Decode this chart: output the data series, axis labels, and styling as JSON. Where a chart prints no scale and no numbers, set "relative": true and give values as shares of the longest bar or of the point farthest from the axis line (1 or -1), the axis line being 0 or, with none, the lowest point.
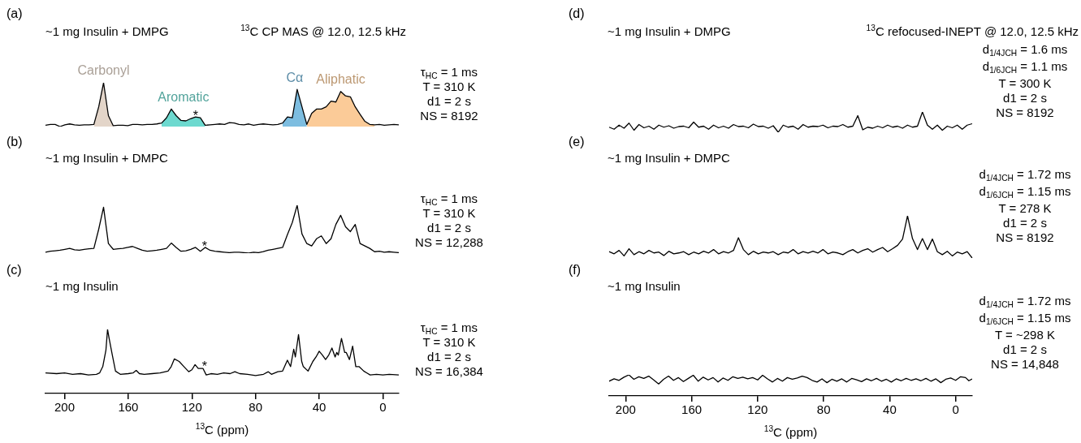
{
  "chart_data": [
    {
      "type": "line",
      "title": "~1 mg Insulin + DMPG",
      "subtitle": "$^{13}$C CP MAS @ 12.0, 12.5 kHz",
      "relative": true,
      "tick_labels": false,
      "categories": [
        null,
        null,
        null,
        null,
        null,
        null,
        null,
        null,
        null,
        null,
        null,
        null,
        null,
        null,
        null,
        null,
        null,
        null,
        null,
        null,
        null,
        null,
        null,
        null,
        null,
        null,
        null,
        null,
        null,
        null,
        null,
        null,
        null,
        null,
        null,
        null,
        null,
        null,
        null,
        null,
        null,
        null,
        null,
        null,
        null,
        null,
        null,
        null,
        null,
        null,
        null,
        null,
        null,
        null,
        null,
        null,
        null,
        null,
        null,
        null,
        null,
        null,
        null,
        null,
        null,
        null,
        null,
        null,
        null,
        null,
        null,
        null,
        null,
        null
      ],
      "series": [
        {
          "color": "#000000",
          "values": [
            0.03,
            0.05,
            0.05,
            0,
            0.04,
            0.06,
            0.04,
            0.03,
            0.04,
            0.04,
            0.05,
            0.45,
            1,
            0.25,
            0.02,
            0.03,
            0.03,
            0.02,
            0.05,
            0.05,
            0.04,
            0.05,
            0.05,
            0.06,
            0.08,
            0.2,
            0.4,
            0.25,
            0.14,
            0.13,
            0.18,
            0.22,
            0.2,
            0.03,
            0.04,
            0.05,
            0.06,
            0.05,
            0.09,
            0.08,
            0.05,
            0.04,
            0.06,
            0.03,
            0.05,
            0.06,
            0.05,
            0.04,
            0.05,
            0.08,
            0.22,
            0.2,
            0.85,
            0.45,
            0.05,
            0.3,
            0.4,
            0.4,
            0.45,
            0.58,
            0.56,
            0.8,
            0.7,
            0.68,
            0.45,
            0.28,
            0.12,
            0.05,
            0.04,
            0.05,
            0.03,
            0.04,
            0.05,
            0.04
          ]
        },
        {
          "type": "area",
          "name": "Carbonyl",
          "color": "#e3d5c9",
          "values": [
            null,
            null,
            null,
            null,
            null,
            null,
            null,
            null,
            null,
            null,
            0.05,
            0.45,
            1,
            0.25,
            0.02,
            null,
            null,
            null,
            null,
            null,
            null,
            null,
            null,
            null,
            null,
            null,
            null,
            null,
            null,
            null,
            null,
            null,
            null,
            null,
            null,
            null,
            null,
            null,
            null,
            null,
            null,
            null,
            null,
            null,
            null,
            null,
            null,
            null,
            null,
            null,
            null,
            null,
            null,
            null,
            null,
            null,
            null,
            null,
            null,
            null,
            null,
            null,
            null,
            null,
            null,
            null,
            null,
            null,
            null,
            null,
            null,
            null,
            null,
            null
          ]
        },
        {
          "type": "area",
          "name": "Aromatic",
          "color": "#6dd9cf",
          "values": [
            null,
            null,
            null,
            null,
            null,
            null,
            null,
            null,
            null,
            null,
            null,
            null,
            null,
            null,
            null,
            null,
            null,
            null,
            null,
            null,
            null,
            null,
            null,
            null,
            0.08,
            0.2,
            0.4,
            0.25,
            0.14,
            0.13,
            0.18,
            0.22,
            0.2,
            0.03,
            null,
            null,
            null,
            null,
            null,
            null,
            null,
            null,
            null,
            null,
            null,
            null,
            null,
            null,
            null,
            null,
            null,
            null,
            null,
            null,
            null,
            null,
            null,
            null,
            null,
            null,
            null,
            null,
            null,
            null,
            null,
            null,
            null,
            null,
            null,
            null,
            null,
            null,
            null,
            null
          ]
        },
        {
          "type": "area",
          "name": "Cα",
          "color": "#7dbde0",
          "values": [
            null,
            null,
            null,
            null,
            null,
            null,
            null,
            null,
            null,
            null,
            null,
            null,
            null,
            null,
            null,
            null,
            null,
            null,
            null,
            null,
            null,
            null,
            null,
            null,
            null,
            null,
            null,
            null,
            null,
            null,
            null,
            null,
            null,
            null,
            null,
            null,
            null,
            null,
            null,
            null,
            null,
            null,
            null,
            null,
            null,
            null,
            null,
            null,
            null,
            0.08,
            0.22,
            0.2,
            0.85,
            0.45,
            0.05,
            null,
            null,
            null,
            null,
            null,
            null,
            null,
            null,
            null,
            null,
            null,
            null,
            null,
            null,
            null,
            null,
            null,
            null,
            null
          ]
        },
        {
          "type": "area",
          "name": "Aliphatic",
          "color": "#fbcb98",
          "values": [
            null,
            null,
            null,
            null,
            null,
            null,
            null,
            null,
            null,
            null,
            null,
            null,
            null,
            null,
            null,
            null,
            null,
            null,
            null,
            null,
            null,
            null,
            null,
            null,
            null,
            null,
            null,
            null,
            null,
            null,
            null,
            null,
            null,
            null,
            null,
            null,
            null,
            null,
            null,
            null,
            null,
            null,
            null,
            null,
            null,
            null,
            null,
            null,
            null,
            null,
            null,
            null,
            null,
            null,
            0.05,
            0.3,
            0.4,
            0.4,
            0.45,
            0.58,
            0.56,
            0.8,
            0.7,
            0.68,
            0.45,
            0.28,
            0.12,
            0.05,
            0.04,
            null,
            null,
            null,
            null,
            null
          ]
        }
      ],
      "annotations": [
        "(a)",
        "τ$_{HC}$ = 1 ms",
        "T = 310 K",
        "d1 = 2 s",
        "NS = 8192",
        {
          "text": "*",
          "y": 0.24
        }
      ]
    },
    {
      "type": "line",
      "title": "~1 mg Insulin + DMPC",
      "relative": true,
      "tick_labels": false,
      "categories": [
        null,
        null,
        null,
        null,
        null,
        null,
        null,
        null,
        null,
        null,
        null,
        null,
        null,
        null,
        null,
        null,
        null,
        null,
        null,
        null,
        null,
        null,
        null,
        null,
        null,
        null,
        null,
        null,
        null,
        null,
        null,
        null,
        null,
        null,
        null,
        null,
        null,
        null,
        null,
        null,
        null,
        null,
        null,
        null,
        null,
        null,
        null,
        null,
        null,
        null,
        null,
        null,
        null,
        null,
        null,
        null,
        null,
        null,
        null,
        null,
        null,
        null,
        null,
        null,
        null,
        null,
        null,
        null,
        null,
        null,
        null,
        null,
        null,
        null
      ],
      "series": [
        {
          "color": "#000000",
          "values": [
            0.02,
            0.04,
            0.05,
            0.06,
            0.08,
            0.1,
            0.07,
            0.06,
            0.08,
            0.09,
            0.1,
            0.5,
            0.96,
            0.2,
            0.08,
            0.09,
            0.1,
            0.12,
            0.14,
            0.1,
            0.06,
            0.04,
            0.05,
            0.06,
            0.08,
            0.1,
            0.21,
            0.12,
            0.04,
            0.05,
            0.08,
            0.12,
            0.04,
            0.12,
            0.06,
            0.04,
            0.03,
            0.02,
            0.01,
            0.02,
            0.02,
            0.01,
            0,
            0.02,
            0.01,
            0.03,
            0.06,
            0.08,
            0.1,
            0.12,
            0.39,
            0.64,
            1,
            0.4,
            0.2,
            0.15,
            0.3,
            0.36,
            0.2,
            0.3,
            0.6,
            0.79,
            0.55,
            0.45,
            0.6,
            0.2,
            0.15,
            0.1,
            0.03,
            0.04,
            0.02,
            0.03,
            0.02,
            0.01
          ]
        }
      ],
      "annotations": [
        "(b)",
        "τ$_{HC}$ = 1 ms",
        "T = 310 K",
        "d1 = 2 s",
        "NS = 12,288",
        {
          "text": "*",
          "y": 0.15
        }
      ]
    },
    {
      "type": "line",
      "title": "~1 mg Insulin",
      "relative": true,
      "tick_labels": "x",
      "xlabel": "$^{13}$C (ppm)",
      "xlim": [
        212,
        -10
      ],
      "xticks": [
        200,
        160,
        120,
        80,
        40,
        0
      ],
      "series": [
        {
          "color": "#000000",
          "x": [
            212,
            205,
            200,
            195,
            190,
            185,
            180,
            178,
            176,
            174,
            173,
            172,
            170,
            168,
            165,
            160,
            157,
            155,
            153,
            150,
            145,
            140,
            135,
            133,
            131,
            128,
            125,
            122,
            120,
            118,
            116,
            113,
            111,
            108,
            104,
            100,
            96,
            93,
            90,
            85,
            80,
            75,
            72,
            70,
            66,
            63,
            60,
            58,
            56,
            55,
            53,
            51,
            50,
            47,
            44,
            42,
            40,
            38,
            36,
            34,
            32,
            30,
            29,
            28,
            26,
            24,
            23,
            21,
            19,
            17,
            15,
            12,
            10,
            8,
            4,
            0,
            -4,
            -10
          ],
          "values": [
            0.32,
            0.31,
            0.32,
            0.3,
            0.31,
            0.29,
            0.3,
            0.32,
            0.42,
            0.68,
            1,
            0.86,
            0.6,
            0.35,
            0.3,
            0.31,
            0.32,
            0.36,
            0.31,
            0.3,
            0.31,
            0.32,
            0.35,
            0.42,
            0.54,
            0.5,
            0.42,
            0.34,
            0.37,
            0.45,
            0.39,
            0.39,
            0.29,
            0.31,
            0.3,
            0.32,
            0.31,
            0.34,
            0.31,
            0.3,
            0.28,
            0.3,
            0.34,
            0.3,
            0.34,
            0.35,
            0.52,
            0.42,
            0.69,
            0.57,
            0.92,
            0.5,
            0.42,
            0.35,
            0.5,
            0.57,
            0.66,
            0.6,
            0.53,
            0.6,
            0.71,
            0.57,
            0.64,
            0.6,
            0.86,
            0.64,
            0.64,
            0.53,
            0.74,
            0.42,
            0.42,
            0.35,
            0.32,
            0.29,
            0.3,
            0.29,
            0.3,
            0.29
          ]
        }
      ],
      "annotations": [
        "(c)",
        "τ$_{HC}$ = 1 ms",
        "T = 310 K",
        "d1 = 2 s",
        "NS = 16,384",
        {
          "text": "*",
          "x": 112,
          "y": 0.42
        }
      ]
    },
    {
      "type": "line",
      "title": "~1 mg Insulin + DMPG",
      "subtitle": "$^{13}$C refocused-INEPT @ 12.0, 12.5 kHz",
      "relative": true,
      "tick_labels": false,
      "categories": [
        null,
        null,
        null,
        null,
        null,
        null,
        null,
        null,
        null,
        null,
        null,
        null,
        null,
        null,
        null,
        null,
        null,
        null,
        null,
        null,
        null,
        null,
        null,
        null,
        null,
        null,
        null,
        null,
        null,
        null,
        null,
        null,
        null,
        null,
        null,
        null,
        null,
        null,
        null,
        null,
        null,
        null,
        null,
        null,
        null,
        null,
        null,
        null,
        null,
        null,
        null,
        null,
        null,
        null,
        null,
        null,
        null,
        null,
        null,
        null,
        null,
        null,
        null,
        null,
        null,
        null,
        null,
        null,
        null,
        null,
        null,
        null,
        null,
        null
      ],
      "series": [
        {
          "color": "#000000",
          "values": [
            0.25,
            0.15,
            0.35,
            0.2,
            0.45,
            0.1,
            0.38,
            0.22,
            0.3,
            0.15,
            0.35,
            0.25,
            0.32,
            0.2,
            0.28,
            0.3,
            0.22,
            0.5,
            0.25,
            0.3,
            0.15,
            0.35,
            0.22,
            0.3,
            0.2,
            0.38,
            0.28,
            0.3,
            0.22,
            0.4,
            0.28,
            0.3,
            0.2,
            0.32,
            0,
            0.35,
            0.25,
            0.3,
            0.15,
            0.38,
            0.25,
            0.3,
            0.28,
            0.35,
            0.22,
            0.3,
            0.28,
            0.38,
            0.25,
            0.3,
            0.82,
            0.12,
            0.25,
            0.2,
            0.3,
            0.22,
            0.35,
            0.25,
            0.3,
            0.2,
            0.35,
            0.25,
            0.3,
            1,
            0.35,
            0.15,
            0.35,
            0.1,
            0.3,
            0.22,
            0.35,
            0.15,
            0.35,
            0.42
          ]
        }
      ],
      "annotations": [
        "(d)",
        "d$_{1/4J}$$_{CH}$ = 1.6 ms",
        "d$_{1/6J}$$_{CH}$ = 1.1 ms",
        "T = 300 K",
        "d1 = 2 s",
        "NS = 8192"
      ]
    },
    {
      "type": "line",
      "title": "~1 mg Insulin + DMPC",
      "relative": true,
      "tick_labels": false,
      "categories": [
        null,
        null,
        null,
        null,
        null,
        null,
        null,
        null,
        null,
        null,
        null,
        null,
        null,
        null,
        null,
        null,
        null,
        null,
        null,
        null,
        null,
        null,
        null,
        null,
        null,
        null,
        null,
        null,
        null,
        null,
        null,
        null,
        null,
        null,
        null,
        null,
        null,
        null,
        null,
        null,
        null,
        null,
        null,
        null,
        null,
        null,
        null,
        null,
        null,
        null,
        null,
        null,
        null,
        null,
        null,
        null,
        null,
        null,
        null,
        null,
        null,
        null,
        null,
        null,
        null,
        null,
        null,
        null,
        null,
        null,
        null,
        null,
        null,
        null
      ],
      "series": [
        {
          "color": "#000000",
          "values": [
            0.15,
            0.1,
            0.18,
            0.05,
            0.22,
            0.08,
            0.15,
            0.1,
            0.18,
            0.12,
            0.14,
            0.06,
            0.16,
            0.1,
            0.12,
            0.15,
            0.08,
            0.14,
            0.1,
            0.16,
            0.12,
            0.2,
            0.1,
            0.15,
            0.12,
            0.18,
            0.48,
            0.2,
            0.08,
            0.16,
            0.1,
            0.14,
            0.12,
            0.15,
            0.08,
            0.14,
            0.12,
            0.2,
            0.1,
            0.15,
            0.12,
            0.16,
            0.12,
            0.2,
            0.1,
            0.14,
            0.12,
            0.08,
            0.15,
            0.2,
            0.12,
            0.18,
            0.22,
            0.14,
            0.2,
            0.25,
            0.15,
            0.22,
            0.3,
            0.45,
            1,
            0.46,
            0.2,
            0.46,
            0.2,
            0.45,
            0.15,
            0.08,
            0.16,
            0.05,
            0.14,
            0.1,
            0.15,
            0
          ]
        }
      ],
      "annotations": [
        "(e)",
        "d$_{1/4J}$$_{CH}$ = 1.72 ms",
        "d$_{1/6J}$$_{CH}$ = 1.15 ms",
        "T = 278 K",
        "d1 = 2 s",
        "NS = 8192"
      ]
    },
    {
      "type": "line",
      "title": "~1 mg Insulin",
      "relative": true,
      "tick_labels": "x",
      "xlabel": "$^{13}$C (ppm)",
      "xlim": [
        210,
        -10
      ],
      "xticks": [
        200,
        160,
        120,
        80,
        40,
        0
      ],
      "series": [
        {
          "color": "#000000",
          "x": [
            210,
            207,
            204,
            201,
            198,
            195,
            192,
            189,
            186,
            183,
            180,
            177,
            174,
            171,
            168,
            165,
            162,
            159,
            156,
            153,
            150,
            147,
            144,
            141,
            138,
            135,
            132,
            129,
            126,
            123,
            120,
            117,
            114,
            111,
            108,
            105,
            102,
            99,
            96,
            93,
            90,
            87,
            84,
            81,
            78,
            75,
            72,
            69,
            66,
            63,
            60,
            57,
            54,
            51,
            48,
            45,
            42,
            39,
            36,
            33,
            30,
            27,
            24,
            21,
            18,
            15,
            12,
            9,
            6,
            3,
            0,
            -3,
            -6,
            -8,
            -10
          ],
          "values": [
            0.7,
            0.81,
            0.74,
            0.89,
            1,
            0.79,
            0.91,
            0.83,
            0.94,
            0.76,
            0.57,
            0.79,
            0.94,
            0.74,
            0.87,
            0.68,
            0.83,
            0.98,
            0.7,
            0.89,
            0.76,
            0.87,
            0.66,
            0.85,
            0.74,
            0.91,
            0.83,
            0.89,
            0.81,
            0.87,
            0.76,
            0.98,
            0.81,
            0.66,
            0.83,
            0.7,
            0.87,
            0.79,
            0.85,
            0.94,
            0.87,
            0.74,
            0.66,
            0.81,
            0.63,
            0.79,
            0.7,
            0.81,
            0.66,
            0.83,
            0.76,
            0.68,
            0.81,
            0.72,
            0.83,
            0.7,
            0.79,
            0.66,
            0.81,
            0.72,
            0.83,
            0.74,
            0.81,
            0.72,
            0.83,
            0.7,
            0.81,
            0.63,
            0.79,
            0.85,
            0.74,
            0.91,
            0.87,
            0.72,
            0.81
          ]
        }
      ],
      "annotations": [
        "(f)",
        "d$_{1/4J}$$_{CH}$ = 1.72 ms",
        "d$_{1/6J}$$_{CH}$ = 1.15 ms",
        "T = ~298 K",
        "d1 = 2 s",
        "NS = 14,848"
      ]
    }
  ]
}
